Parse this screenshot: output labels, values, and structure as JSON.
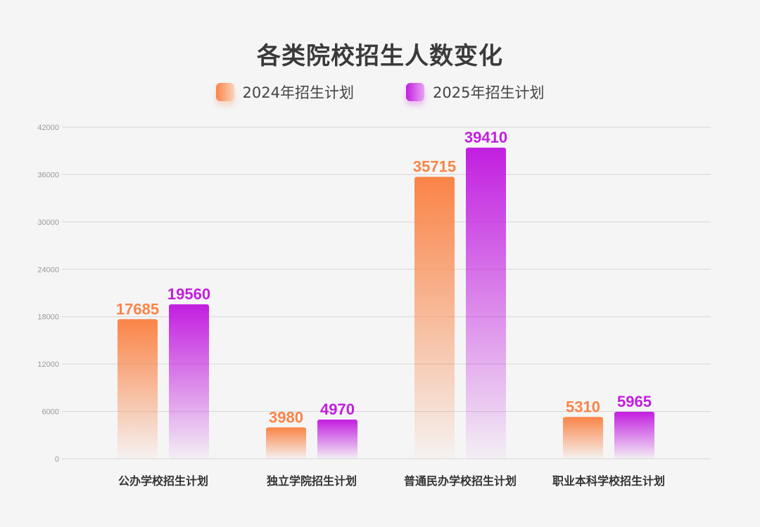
{
  "chart_data": {
    "type": "bar",
    "title": "各类院校招生人数变化",
    "categories": [
      "公办学校招生计划",
      "独立学院招生计划",
      "普通民办学校招生计划",
      "职业本科学校招生计划"
    ],
    "series": [
      {
        "name": "2024年招生计划",
        "values": [
          17685,
          3980,
          35715,
          5310
        ],
        "color": "#fa8447"
      },
      {
        "name": "2025年招生计划",
        "values": [
          19560,
          4970,
          39410,
          5965
        ],
        "color": "#c21ee0"
      }
    ],
    "yticks": [
      0,
      6000,
      12000,
      18000,
      24000,
      30000,
      36000,
      42000
    ],
    "ylim": [
      0,
      42000
    ],
    "xlabel": "",
    "ylabel": "",
    "grid": true,
    "legend": "top-center"
  }
}
